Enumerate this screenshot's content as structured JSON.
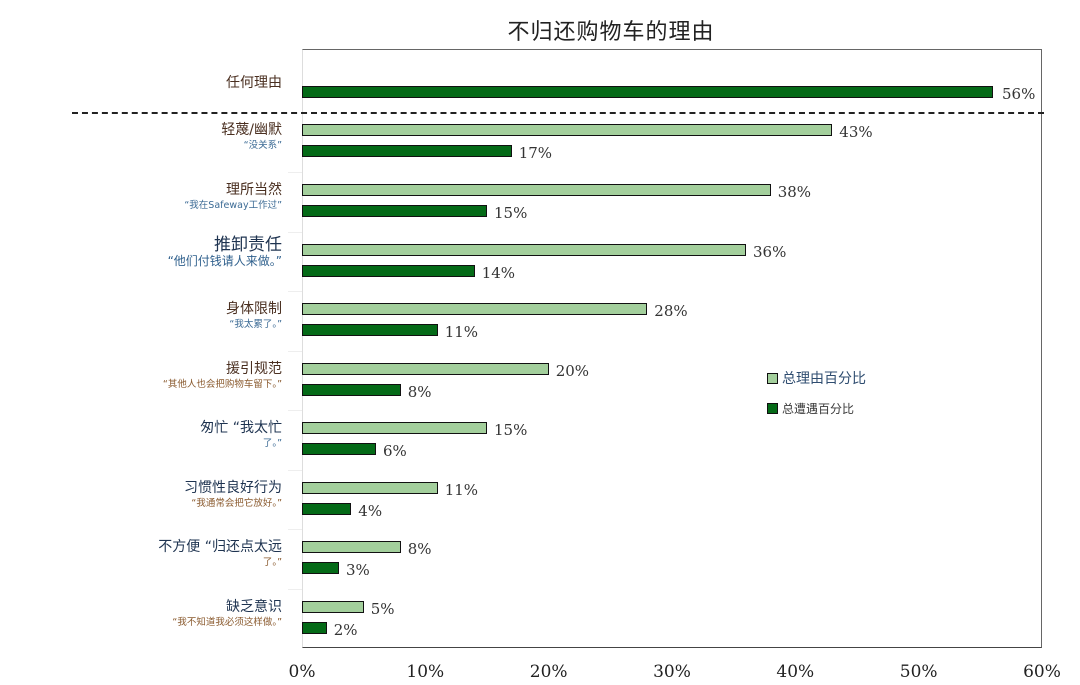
{
  "chart_data": {
    "type": "bar",
    "orientation": "horizontal",
    "title": "不归还购物车的理由",
    "xlabel": "",
    "ylabel": "",
    "xlim": [
      0,
      60
    ],
    "x_ticks": [
      "0%",
      "10%",
      "20%",
      "30%",
      "40%",
      "50%",
      "60%"
    ],
    "grid": false,
    "legend_position": "right-center",
    "top_category": {
      "label": "任何理由",
      "value": 56,
      "series": "总遭遇百分比"
    },
    "categories": [
      {
        "label": "轻蔑/幽默",
        "quote": "“没关系”"
      },
      {
        "label": "理所当然",
        "quote": "“我在Safeway工作过”"
      },
      {
        "label": "推卸责任",
        "quote": "“他们付钱请人来做。”"
      },
      {
        "label": "身体限制",
        "quote": "“我太累了。”"
      },
      {
        "label": "援引规范",
        "quote": "“其他人也会把购物车留下。”"
      },
      {
        "label": "匆忙 “我太忙",
        "quote": "了。”"
      },
      {
        "label": "习惯性良好行为",
        "quote": "“我通常会把它放好。”"
      },
      {
        "label": "不方便 “归还点太远",
        "quote": "了。”"
      },
      {
        "label": "缺乏意识",
        "quote": "“我不知道我必须这样做。”"
      }
    ],
    "series": [
      {
        "name": "总理由百分比",
        "color": "#a3cf9c",
        "values": [
          43,
          38,
          36,
          28,
          20,
          15,
          11,
          8,
          5
        ]
      },
      {
        "name": "总遭遇百分比",
        "color": "#046a17",
        "values": [
          17,
          15,
          14,
          11,
          8,
          6,
          4,
          3,
          2
        ]
      }
    ]
  },
  "title": "不归还购物车的理由",
  "top": {
    "label": "任何理由",
    "value_label": "56%"
  },
  "groups": [
    {
      "main": "轻蔑/幽默",
      "sub": "“没关系”",
      "light_label": "43%",
      "dark_label": "17%"
    },
    {
      "main": "理所当然",
      "sub": "“我在Safeway工作过”",
      "light_label": "38%",
      "dark_label": "15%"
    },
    {
      "main": "推卸责任",
      "sub": "“他们付钱请人来做。”",
      "light_label": "36%",
      "dark_label": "14%"
    },
    {
      "main": "身体限制",
      "sub": "“我太累了。”",
      "light_label": "28%",
      "dark_label": "11%"
    },
    {
      "main": "援引规范",
      "sub": "“其他人也会把购物车留下。”",
      "light_label": "20%",
      "dark_label": "8%"
    },
    {
      "main": "匆忙 “我太忙",
      "sub": "了。”",
      "light_label": "15%",
      "dark_label": "6%"
    },
    {
      "main": "习惯性良好行为",
      "sub": "“我通常会把它放好。”",
      "light_label": "11%",
      "dark_label": "4%"
    },
    {
      "main": "不方便 “归还点太远",
      "sub": "了。”",
      "light_label": "8%",
      "dark_label": "3%"
    },
    {
      "main": "缺乏意识",
      "sub": "“我不知道我必须这样做。”",
      "light_label": "5%",
      "dark_label": "2%"
    }
  ],
  "x_ticks": [
    "0%",
    "10%",
    "20%",
    "30%",
    "40%",
    "50%",
    "60%"
  ],
  "legend": {
    "items": [
      {
        "label": "总理由百分比",
        "color": "#a3cf9c"
      },
      {
        "label": "总遭遇百分比",
        "color": "#046a17"
      }
    ]
  }
}
